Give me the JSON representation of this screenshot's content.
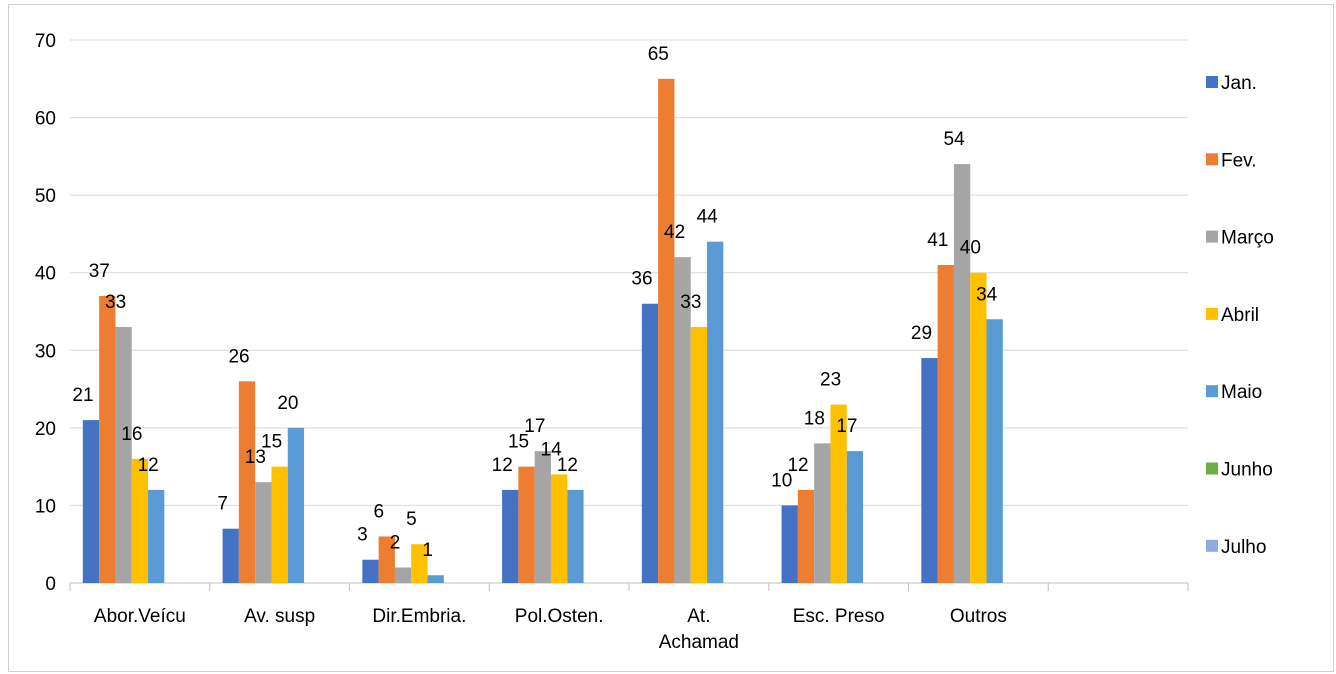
{
  "chart_data": {
    "type": "bar",
    "title": "",
    "xlabel": "",
    "ylabel": "",
    "categories": [
      "Abor.Veícu",
      "Av. susp",
      "Dir.Embria.",
      "Pol.Osten.",
      "At. Achamad",
      "Esc. Preso",
      "Outros",
      ""
    ],
    "category_lines": [
      [
        "Abor.Veícu"
      ],
      [
        "Av. susp"
      ],
      [
        "Dir.Embria."
      ],
      [
        "Pol.Osten."
      ],
      [
        "At.",
        "Achamad"
      ],
      [
        "Esc. Preso"
      ],
      [
        "Outros"
      ],
      []
    ],
    "ylim": [
      0,
      70
    ],
    "yticks": [
      0,
      10,
      20,
      30,
      40,
      50,
      60,
      70
    ],
    "grid": true,
    "legend_position": "right",
    "series": [
      {
        "name": "Jan.",
        "color": "#4472C4",
        "values": [
          21,
          7,
          3,
          12,
          36,
          10,
          29,
          null
        ]
      },
      {
        "name": "Fev.",
        "color": "#ED7D31",
        "values": [
          37,
          26,
          6,
          15,
          65,
          12,
          41,
          null
        ]
      },
      {
        "name": "Março",
        "color": "#A5A5A5",
        "values": [
          33,
          13,
          2,
          17,
          42,
          18,
          54,
          null
        ]
      },
      {
        "name": "Abril",
        "color": "#FFC000",
        "values": [
          16,
          15,
          5,
          14,
          33,
          23,
          40,
          null
        ]
      },
      {
        "name": "Maio",
        "color": "#5B9BD5",
        "values": [
          12,
          20,
          1,
          12,
          44,
          17,
          34,
          null
        ]
      },
      {
        "name": "Junho",
        "color": "#70AD47",
        "values": [
          null,
          null,
          null,
          null,
          null,
          null,
          null,
          null
        ]
      },
      {
        "name": "Julho",
        "color": "#8FAADC",
        "values": [
          null,
          null,
          null,
          null,
          null,
          null,
          null,
          null
        ]
      }
    ]
  }
}
